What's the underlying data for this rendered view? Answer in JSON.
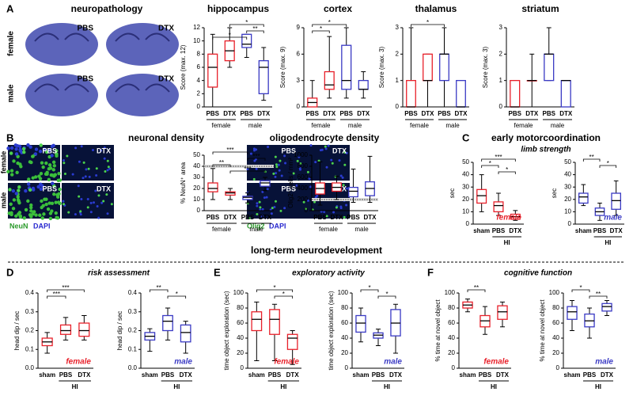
{
  "headings": {
    "a": "A",
    "b": "B",
    "c": "C",
    "d": "D",
    "e": "E",
    "f": "F",
    "neuropathology": "neuropathology",
    "neuronal": "neuronal density",
    "oligo": "oligodendrocyte density",
    "motor": "early motorcoordination",
    "limb": "limb strength",
    "longterm": "long-term neurodevelopment",
    "risk": "risk assessment",
    "explore": "exploratory activity",
    "cognitive": "cognitive function"
  },
  "micrographs": {
    "rows": [
      "female",
      "male"
    ],
    "conditions": [
      "PBS",
      "DTX"
    ],
    "neun": "NeuN",
    "olig": "Olig2",
    "dapi": "DAPI"
  },
  "chart_data": [
    {
      "type": "box",
      "title": "hippocampus",
      "ylabel": "Score (max. 12)",
      "ylim": [
        0,
        12
      ],
      "yticks": [
        0,
        2,
        4,
        6,
        8,
        10,
        12
      ],
      "categories": [
        "PBS",
        "DTX",
        "PBS",
        "DTX"
      ],
      "colors": [
        "#e8202a",
        "#e8202a",
        "#3a3ac4",
        "#3a3ac4"
      ],
      "groups": [
        "female",
        "male"
      ],
      "boxes": [
        {
          "min": 0,
          "q1": 3,
          "median": 6,
          "q3": 8,
          "max": 11
        },
        {
          "min": 6,
          "q1": 7,
          "median": 8.5,
          "q3": 10,
          "max": 12
        },
        {
          "min": 7.5,
          "q1": 9,
          "median": 9.5,
          "q3": 11,
          "max": 11
        },
        {
          "min": 1,
          "q1": 2,
          "median": 6,
          "q3": 7,
          "max": 9
        }
      ],
      "annotations": [
        {
          "text": "*",
          "from": 1,
          "to": 3
        },
        {
          "text": "**",
          "from": 2,
          "to": 3
        },
        {
          "text": "*",
          "from": 0,
          "to": 2
        }
      ]
    },
    {
      "type": "box",
      "title": "cortex",
      "ylabel": "Score (max. 9)",
      "ylim": [
        0,
        9
      ],
      "yticks": [
        0,
        3,
        6,
        9
      ],
      "categories": [
        "PBS",
        "DTX",
        "PBS",
        "DTX"
      ],
      "colors": [
        "#e8202a",
        "#e8202a",
        "#3a3ac4",
        "#3a3ac4"
      ],
      "groups": [
        "female",
        "male"
      ],
      "boxes": [
        {
          "min": 0,
          "q1": 0,
          "median": 0.5,
          "q3": 1,
          "max": 3
        },
        {
          "min": 1,
          "q1": 2,
          "median": 2.5,
          "q3": 4,
          "max": 8
        },
        {
          "min": 1,
          "q1": 2,
          "median": 3,
          "q3": 7,
          "max": 9
        },
        {
          "min": 1,
          "q1": 2,
          "median": 2,
          "q3": 3,
          "max": 4
        }
      ],
      "annotations": [
        {
          "text": "*",
          "from": 0,
          "to": 2
        },
        {
          "text": "*",
          "from": 0,
          "to": 1
        }
      ]
    },
    {
      "type": "box",
      "title": "thalamus",
      "ylabel": "Score (max. 3)",
      "ylim": [
        0,
        3
      ],
      "yticks": [
        0,
        1,
        2,
        3
      ],
      "categories": [
        "PBS",
        "DTX",
        "PBS",
        "DTX"
      ],
      "colors": [
        "#e8202a",
        "#e8202a",
        "#3a3ac4",
        "#3a3ac4"
      ],
      "groups": [
        "female",
        "male"
      ],
      "boxes": [
        {
          "min": 0,
          "q1": 0,
          "median": 0,
          "q3": 1,
          "max": 3
        },
        {
          "min": 0,
          "q1": 1,
          "median": 1,
          "q3": 2,
          "max": 2
        },
        {
          "min": 0,
          "q1": 1,
          "median": 2,
          "q3": 2,
          "max": 3
        },
        {
          "min": 0,
          "q1": 0,
          "median": 0,
          "q3": 1,
          "max": 1
        }
      ],
      "annotations": [
        {
          "text": "*",
          "from": 0,
          "to": 2
        }
      ]
    },
    {
      "type": "box",
      "title": "striatum",
      "ylabel": "Score (max. 3)",
      "ylim": [
        0,
        3
      ],
      "yticks": [
        0,
        1,
        2,
        3
      ],
      "categories": [
        "PBS",
        "DTX",
        "PBS",
        "DTX"
      ],
      "colors": [
        "#e8202a",
        "#e8202a",
        "#3a3ac4",
        "#3a3ac4"
      ],
      "groups": [
        "female",
        "male"
      ],
      "boxes": [
        {
          "min": 0,
          "q1": 0,
          "median": 0,
          "q3": 1,
          "max": 1
        },
        {
          "min": 0,
          "q1": 1,
          "median": 1,
          "q3": 1,
          "max": 2
        },
        {
          "min": 1,
          "q1": 1,
          "median": 2,
          "q3": 2,
          "max": 3
        },
        {
          "min": 0,
          "q1": 0,
          "median": 1,
          "q3": 1,
          "max": 1
        }
      ],
      "annotations": []
    },
    {
      "type": "box",
      "ylabel": "% NeuN⁺ area",
      "ylim": [
        0,
        50
      ],
      "yticks": [
        0,
        10,
        20,
        30,
        40,
        50
      ],
      "categories": [
        "PBS",
        "DTX",
        "PBS",
        "DTX"
      ],
      "colors": [
        "#e8202a",
        "#e8202a",
        "#3a3ac4",
        "#3a3ac4"
      ],
      "groups": [
        "female",
        "male"
      ],
      "reference": 40,
      "boxes": [
        {
          "min": 10,
          "q1": 17,
          "median": 20,
          "q3": 25,
          "max": 38
        },
        {
          "min": 10,
          "q1": 14,
          "median": 16,
          "q3": 17,
          "max": 20
        },
        {
          "min": 7,
          "q1": 10,
          "median": 12,
          "q3": 13,
          "max": 16
        },
        {
          "min": 18,
          "q1": 22,
          "median": 25,
          "q3": 27,
          "max": 30
        }
      ],
      "annotations": [
        {
          "text": "***",
          "from": 0,
          "to": 2
        },
        {
          "text": "***",
          "from": 2,
          "to": 3
        },
        {
          "text": "**",
          "from": 0,
          "to": 1
        },
        {
          "text": "***",
          "from": 1,
          "to": 3
        }
      ]
    },
    {
      "type": "box",
      "ylabel": "Olig2⁺ cells / mm²",
      "ylim": [
        0,
        1000
      ],
      "yticks": [
        0,
        200,
        400,
        600,
        800,
        1000
      ],
      "categories": [
        "PBS",
        "DTX",
        "PBS",
        "DTX"
      ],
      "colors": [
        "#e8202a",
        "#e8202a",
        "#3a3ac4",
        "#3a3ac4"
      ],
      "groups": [
        "female",
        "male"
      ],
      "reference": 200,
      "boxes": [
        {
          "min": 100,
          "q1": 300,
          "median": 400,
          "q3": 500,
          "max": 880
        },
        {
          "min": 200,
          "q1": 350,
          "median": 420,
          "q3": 500,
          "max": 620
        },
        {
          "min": 150,
          "q1": 250,
          "median": 350,
          "q3": 420,
          "max": 750
        },
        {
          "min": 150,
          "q1": 270,
          "median": 400,
          "q3": 520,
          "max": 980
        }
      ],
      "annotations": []
    },
    {
      "type": "box",
      "ylabel": "sec",
      "label": "female",
      "ylim": [
        0,
        50
      ],
      "yticks": [
        0,
        10,
        20,
        30,
        40,
        50
      ],
      "categories": [
        "sham",
        "PBS",
        "DTX"
      ],
      "colors": [
        "#e8202a",
        "#e8202a",
        "#e8202a"
      ],
      "group": "HI",
      "boxes": [
        {
          "min": 10,
          "q1": 17,
          "median": 23,
          "q3": 28,
          "max": 40
        },
        {
          "min": 7,
          "q1": 10,
          "median": 15,
          "q3": 18,
          "max": 25
        },
        {
          "min": 3,
          "q1": 4,
          "median": 6,
          "q3": 8,
          "max": 11
        }
      ],
      "annotations": [
        {
          "text": "***",
          "from": 0,
          "to": 2
        },
        {
          "text": "*",
          "from": 0,
          "to": 1
        },
        {
          "text": "*",
          "from": 1,
          "to": 2
        }
      ]
    },
    {
      "type": "box",
      "ylabel": "sec",
      "label": "male",
      "ylim": [
        0,
        50
      ],
      "yticks": [
        0,
        10,
        20,
        30,
        40,
        50
      ],
      "categories": [
        "sham",
        "PBS",
        "DTX"
      ],
      "colors": [
        "#3a3ac4",
        "#3a3ac4",
        "#3a3ac4"
      ],
      "group": "HI",
      "boxes": [
        {
          "min": 15,
          "q1": 17,
          "median": 22,
          "q3": 25,
          "max": 32
        },
        {
          "min": 3,
          "q1": 7,
          "median": 10,
          "q3": 13,
          "max": 17
        },
        {
          "min": 7,
          "q1": 12,
          "median": 19,
          "q3": 25,
          "max": 35
        }
      ],
      "annotations": [
        {
          "text": "**",
          "from": 0,
          "to": 1
        },
        {
          "text": "*",
          "from": 1,
          "to": 2
        }
      ]
    },
    {
      "type": "box",
      "ylabel": "head dip / sec",
      "label": "female",
      "ylim": [
        0,
        0.4
      ],
      "yticks": [
        {
          "value": 0,
          "label": "0.0"
        },
        0.1,
        0.2,
        0.3,
        0.4
      ],
      "categories": [
        "sham",
        "PBS",
        "DTX"
      ],
      "colors": [
        "#e8202a",
        "#e8202a",
        "#e8202a"
      ],
      "group": "HI",
      "boxes": [
        {
          "min": 0.08,
          "q1": 0.12,
          "median": 0.14,
          "q3": 0.16,
          "max": 0.19
        },
        {
          "min": 0.15,
          "q1": 0.18,
          "median": 0.2,
          "q3": 0.23,
          "max": 0.27
        },
        {
          "min": 0.15,
          "q1": 0.17,
          "median": 0.2,
          "q3": 0.24,
          "max": 0.28
        }
      ],
      "annotations": [
        {
          "text": "***",
          "from": 0,
          "to": 2
        },
        {
          "text": "***",
          "from": 0,
          "to": 1
        }
      ]
    },
    {
      "type": "box",
      "ylabel": "head dip / sec",
      "label": "male",
      "ylim": [
        0,
        0.4
      ],
      "yticks": [
        {
          "value": 0,
          "label": "0.0"
        },
        0.1,
        0.2,
        0.3,
        0.4
      ],
      "categories": [
        "sham",
        "PBS",
        "DTX"
      ],
      "colors": [
        "#3a3ac4",
        "#3a3ac4",
        "#3a3ac4"
      ],
      "group": "HI",
      "boxes": [
        {
          "min": 0.09,
          "q1": 0.15,
          "median": 0.17,
          "q3": 0.19,
          "max": 0.21
        },
        {
          "min": 0.15,
          "q1": 0.2,
          "median": 0.25,
          "q3": 0.28,
          "max": 0.32
        },
        {
          "min": 0.08,
          "q1": 0.14,
          "median": 0.19,
          "q3": 0.23,
          "max": 0.25
        }
      ],
      "annotations": [
        {
          "text": "**",
          "from": 0,
          "to": 1
        },
        {
          "text": "*",
          "from": 1,
          "to": 2
        }
      ]
    },
    {
      "type": "box",
      "ylabel": "time object exploration (sec)",
      "label": "female",
      "ylim": [
        0,
        100
      ],
      "yticks": [
        0,
        20,
        40,
        60,
        80,
        100
      ],
      "categories": [
        "sham",
        "PBS",
        "DTX"
      ],
      "colors": [
        "#e8202a",
        "#e8202a",
        "#e8202a"
      ],
      "group": "HI",
      "boxes": [
        {
          "min": 10,
          "q1": 50,
          "median": 65,
          "q3": 75,
          "max": 88
        },
        {
          "min": 10,
          "q1": 45,
          "median": 65,
          "q3": 78,
          "max": 85
        },
        {
          "min": 5,
          "q1": 25,
          "median": 40,
          "q3": 45,
          "max": 50
        }
      ],
      "annotations": [
        {
          "text": "*",
          "from": 0,
          "to": 2
        },
        {
          "text": "*",
          "from": 1,
          "to": 2
        }
      ]
    },
    {
      "type": "box",
      "ylabel": "time object exploration (sec)",
      "label": "male",
      "ylim": [
        0,
        100
      ],
      "yticks": [
        0,
        20,
        40,
        60,
        80,
        100
      ],
      "categories": [
        "sham",
        "PBS",
        "DTX"
      ],
      "colors": [
        "#3a3ac4",
        "#3a3ac4",
        "#3a3ac4"
      ],
      "group": "HI",
      "boxes": [
        {
          "min": 35,
          "q1": 48,
          "median": 60,
          "q3": 70,
          "max": 80
        },
        {
          "min": 30,
          "q1": 40,
          "median": 44,
          "q3": 47,
          "max": 52
        },
        {
          "min": 20,
          "q1": 43,
          "median": 60,
          "q3": 78,
          "max": 85
        }
      ],
      "annotations": [
        {
          "text": "*",
          "from": 0,
          "to": 1
        },
        {
          "text": "*",
          "from": 1,
          "to": 2
        }
      ]
    },
    {
      "type": "box",
      "ylabel": "% time at novel object",
      "label": "female",
      "ylim": [
        0,
        100
      ],
      "yticks": [
        0,
        20,
        40,
        60,
        80,
        100
      ],
      "categories": [
        "sham",
        "PBS",
        "DTX"
      ],
      "colors": [
        "#e8202a",
        "#e8202a",
        "#e8202a"
      ],
      "group": "HI",
      "boxes": [
        {
          "min": 75,
          "q1": 80,
          "median": 84,
          "q3": 88,
          "max": 92
        },
        {
          "min": 45,
          "q1": 55,
          "median": 63,
          "q3": 70,
          "max": 82
        },
        {
          "min": 55,
          "q1": 65,
          "median": 75,
          "q3": 83,
          "max": 88
        }
      ],
      "annotations": [
        {
          "text": "**",
          "from": 0,
          "to": 1
        }
      ]
    },
    {
      "type": "box",
      "ylabel": "% time at novel object",
      "label": "male",
      "ylim": [
        0,
        100
      ],
      "yticks": [
        0,
        20,
        40,
        60,
        80,
        100
      ],
      "categories": [
        "sham",
        "PBS",
        "DTX"
      ],
      "colors": [
        "#3a3ac4",
        "#3a3ac4",
        "#3a3ac4"
      ],
      "group": "HI",
      "boxes": [
        {
          "min": 50,
          "q1": 65,
          "median": 75,
          "q3": 82,
          "max": 90
        },
        {
          "min": 40,
          "q1": 55,
          "median": 63,
          "q3": 72,
          "max": 80
        },
        {
          "min": 70,
          "q1": 76,
          "median": 82,
          "q3": 86,
          "max": 90
        }
      ],
      "annotations": [
        {
          "text": "*",
          "from": 0,
          "to": 1
        },
        {
          "text": "**",
          "from": 1,
          "to": 2
        }
      ]
    }
  ]
}
